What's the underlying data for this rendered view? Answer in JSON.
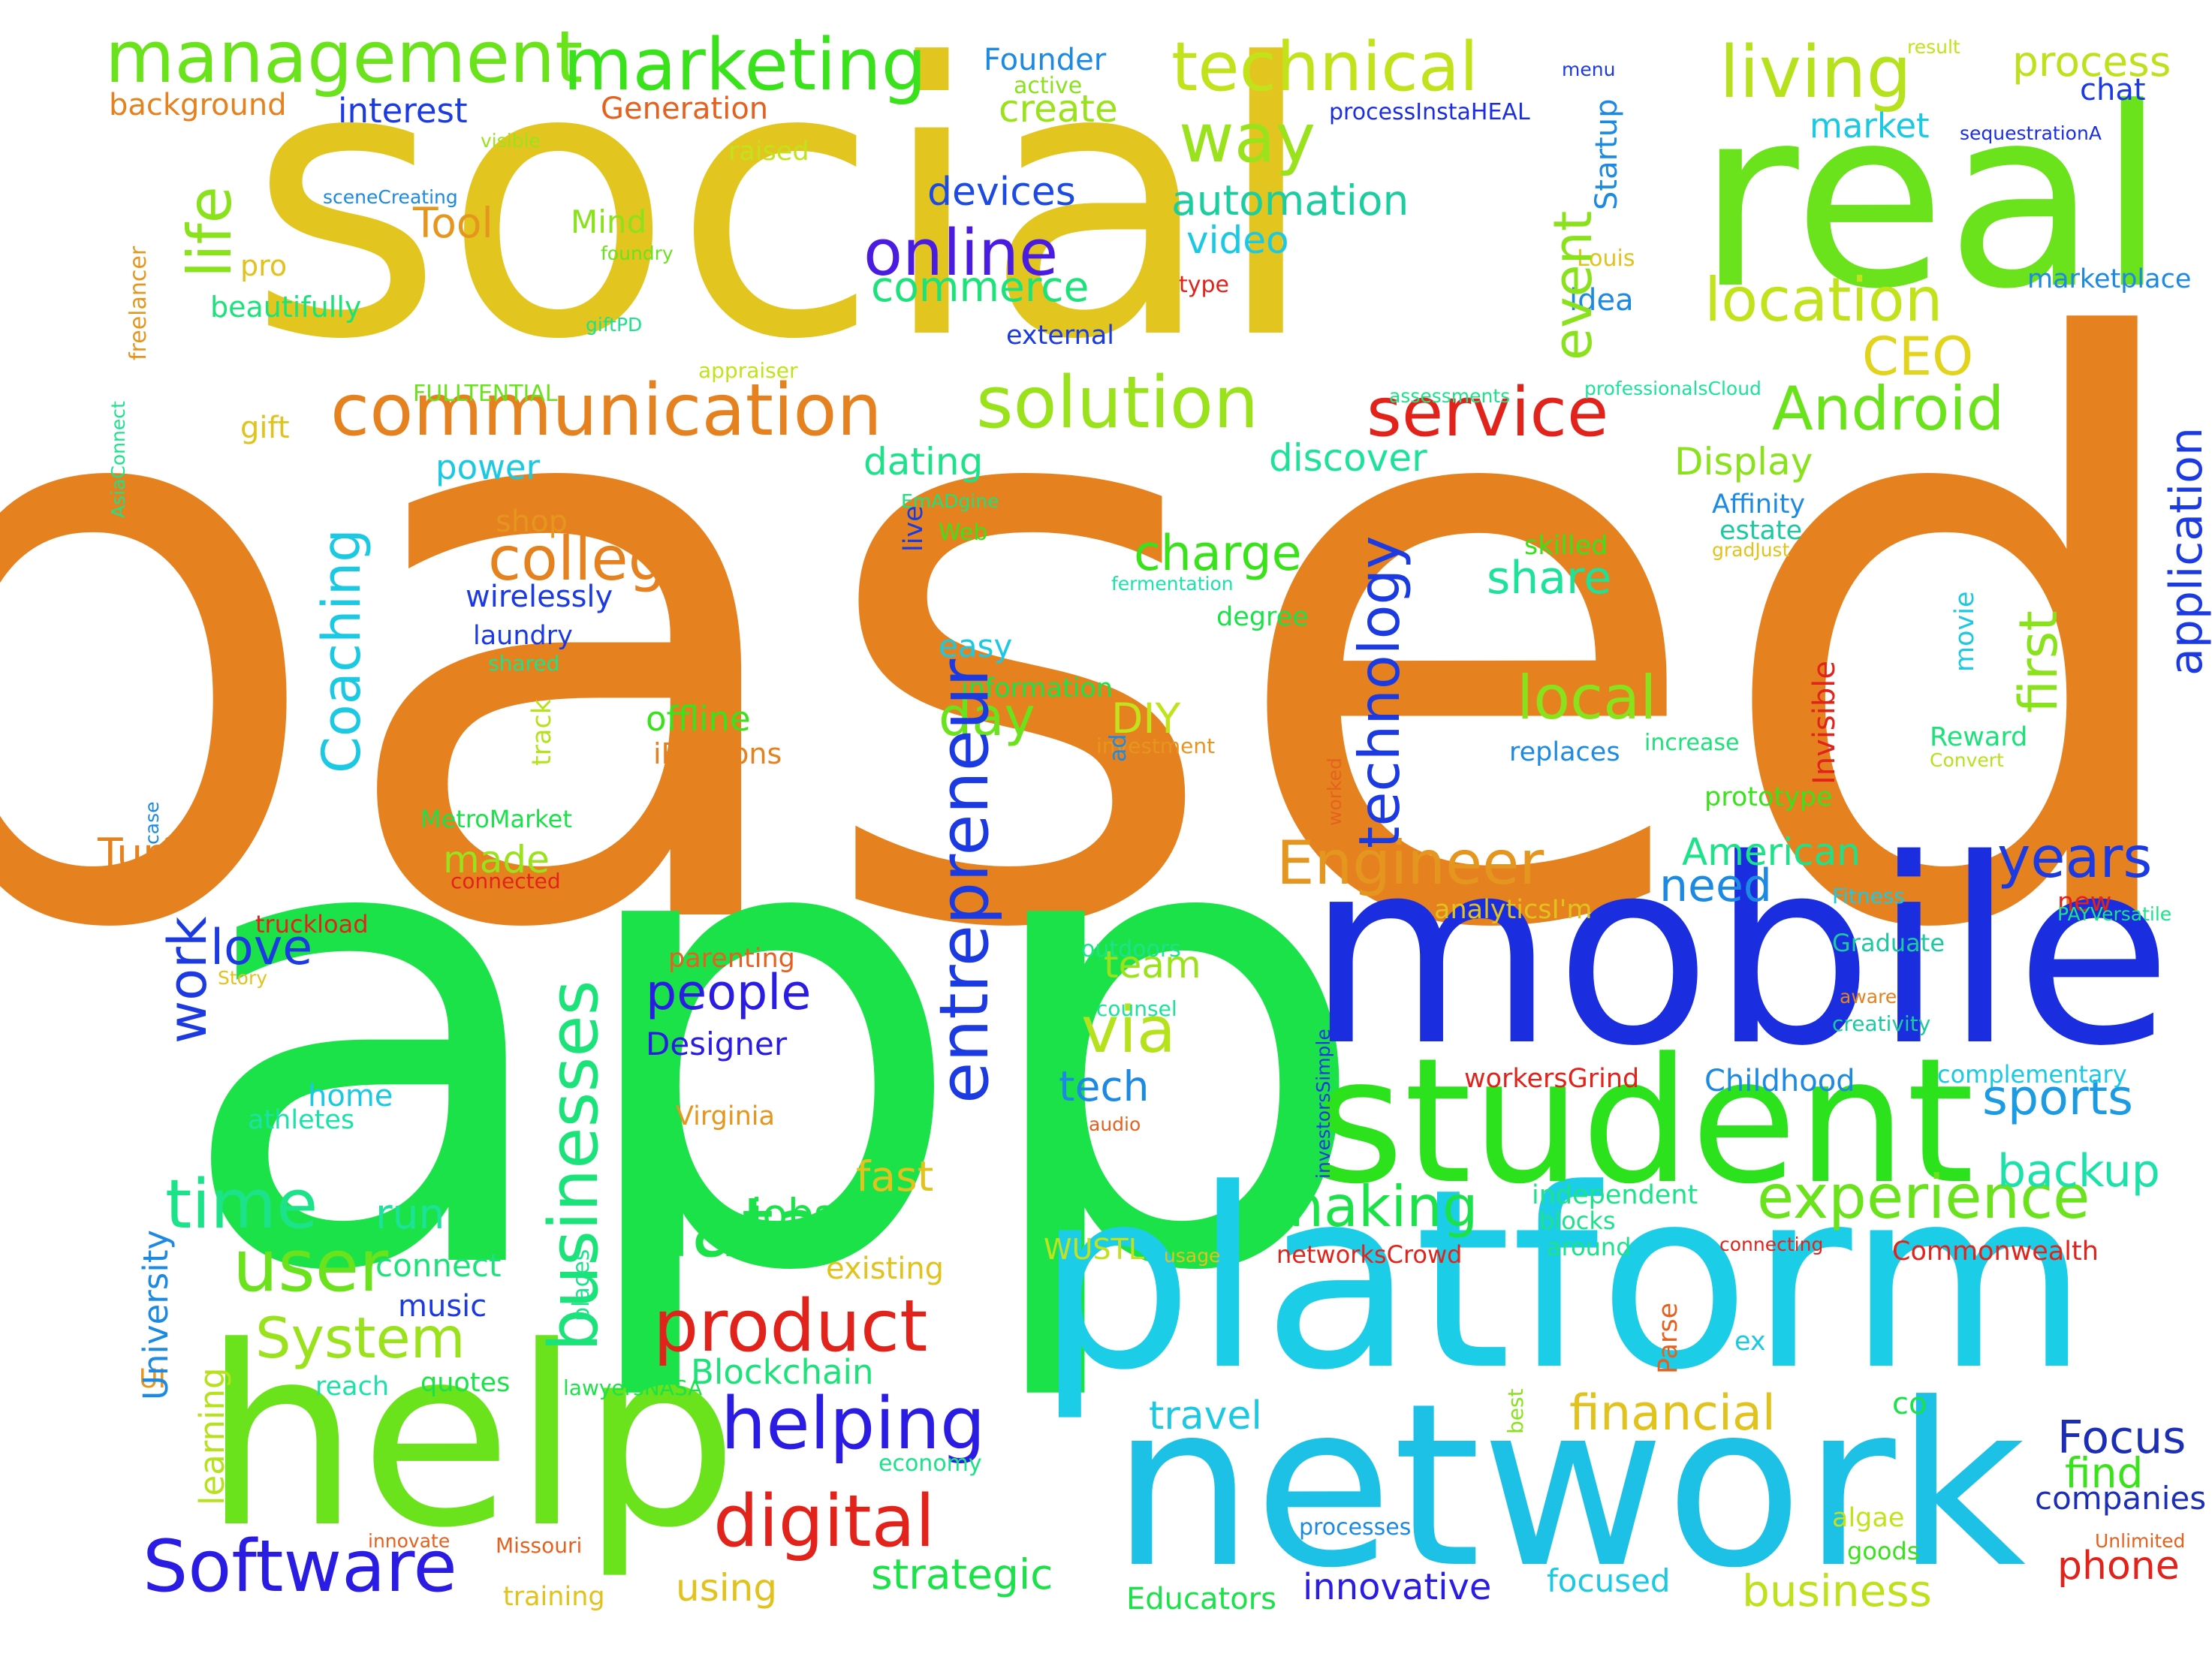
{
  "words": [
    {
      "text": "based",
      "color": "#E5821F"
    },
    {
      "text": "social",
      "color": "#E2C61F"
    },
    {
      "text": "app",
      "color": "#1CE24A"
    },
    {
      "text": "real",
      "color": "#6AE21C"
    },
    {
      "text": "mobile",
      "color": "#1A2EE0"
    },
    {
      "text": "platform",
      "color": "#1CCDE8"
    },
    {
      "text": "network",
      "color": "#1CC1E5"
    },
    {
      "text": "help",
      "color": "#6AE21C"
    },
    {
      "text": "student",
      "color": "#2BE21C"
    },
    {
      "text": "management",
      "color": "#6AE21C"
    },
    {
      "text": "marketing",
      "color": "#3AE21C"
    },
    {
      "text": "technical",
      "color": "#C2E21C"
    },
    {
      "text": "living",
      "color": "#B5E21C"
    },
    {
      "text": "process",
      "color": "#BDE21C"
    },
    {
      "text": "communication",
      "color": "#E5821F"
    },
    {
      "text": "solution",
      "color": "#9AE21C"
    },
    {
      "text": "service",
      "color": "#E2231C"
    },
    {
      "text": "Android",
      "color": "#6AE21C"
    },
    {
      "text": "location",
      "color": "#C2E21C"
    },
    {
      "text": "CEO",
      "color": "#E2D41C"
    },
    {
      "text": "online",
      "color": "#4A1CE2"
    },
    {
      "text": "commerce",
      "color": "#1CE27A"
    },
    {
      "text": "way",
      "color": "#9AE21C"
    },
    {
      "text": "automation",
      "color": "#1CCDA0"
    },
    {
      "text": "video",
      "color": "#1CC9E2"
    },
    {
      "text": "devices",
      "color": "#1C4AE2"
    },
    {
      "text": "college",
      "color": "#E5821F"
    },
    {
      "text": "Engineer",
      "color": "#E5961F"
    },
    {
      "text": "product",
      "color": "#E2231C"
    },
    {
      "text": "digital",
      "color": "#E2231C"
    },
    {
      "text": "Software",
      "color": "#2A1CE2"
    },
    {
      "text": "helping",
      "color": "#2A1CE2"
    },
    {
      "text": "data",
      "color": "#1CE24A"
    },
    {
      "text": "user",
      "color": "#6AE21C"
    },
    {
      "text": "time",
      "color": "#1CE28A"
    },
    {
      "text": "System",
      "color": "#9AE21C"
    },
    {
      "text": "experience",
      "color": "#6AE21C"
    },
    {
      "text": "making",
      "color": "#1CE24A"
    },
    {
      "text": "local",
      "color": "#8AE21C"
    },
    {
      "text": "share",
      "color": "#1CE29A"
    },
    {
      "text": "charge",
      "color": "#3AE21C"
    },
    {
      "text": "years",
      "color": "#1C3AE2"
    },
    {
      "text": "need",
      "color": "#1C8AE2"
    },
    {
      "text": "sports",
      "color": "#1C9AE2"
    },
    {
      "text": "backup",
      "color": "#1CE2AA"
    },
    {
      "text": "financial",
      "color": "#E2C21C"
    },
    {
      "text": "business",
      "color": "#BDE21C"
    },
    {
      "text": "Focus",
      "color": "#1C2EB5"
    },
    {
      "text": "find",
      "color": "#3AE21C"
    },
    {
      "text": "phone",
      "color": "#E2231C"
    },
    {
      "text": "companies",
      "color": "#1C2EB5"
    },
    {
      "text": "travel",
      "color": "#1CC9E2"
    },
    {
      "text": "innovative",
      "color": "#2A1CE2"
    },
    {
      "text": "strategic",
      "color": "#1CE24A"
    },
    {
      "text": "using",
      "color": "#E2C21C"
    },
    {
      "text": "Educators",
      "color": "#1CE24A"
    },
    {
      "text": "focused",
      "color": "#1CC9E2"
    },
    {
      "text": "Blockchain",
      "color": "#1CE27A"
    },
    {
      "text": "via",
      "color": "#B5E21C"
    },
    {
      "text": "tech",
      "color": "#1C8AE2"
    },
    {
      "text": "team",
      "color": "#9AE21C"
    },
    {
      "text": "people",
      "color": "#2A1CE2"
    },
    {
      "text": "Designer",
      "color": "#2A1CE2"
    },
    {
      "text": "love",
      "color": "#1C3AE2"
    },
    {
      "text": "made",
      "color": "#9AE21C"
    },
    {
      "text": "Turf",
      "color": "#E5821F"
    },
    {
      "text": "day",
      "color": "#6AE21C"
    },
    {
      "text": "DIY",
      "color": "#C2E21C"
    },
    {
      "text": "jobsite",
      "color": "#1CE24A"
    },
    {
      "text": "fast",
      "color": "#E2C21C"
    },
    {
      "text": "run",
      "color": "#1CE29A"
    },
    {
      "text": "connect",
      "color": "#1CE27A"
    },
    {
      "text": "music",
      "color": "#1C3AE2"
    },
    {
      "text": "quotes",
      "color": "#1CE24A"
    },
    {
      "text": "reach",
      "color": "#1CE2AA"
    },
    {
      "text": "Tool",
      "color": "#E5961F"
    },
    {
      "text": "Mind",
      "color": "#8AE21C"
    },
    {
      "text": "pro",
      "color": "#E2C21C"
    },
    {
      "text": "beautifully",
      "color": "#1CE27A"
    },
    {
      "text": "interest",
      "color": "#1C3AE2"
    },
    {
      "text": "Generation",
      "color": "#E5611F"
    },
    {
      "text": "background",
      "color": "#E5821F"
    },
    {
      "text": "Founder",
      "color": "#1C8AE2"
    },
    {
      "text": "active",
      "color": "#8AE21C"
    },
    {
      "text": "create",
      "color": "#9AE21C"
    },
    {
      "text": "raised",
      "color": "#C2E21C"
    },
    {
      "text": "market",
      "color": "#1CC9E2"
    },
    {
      "text": "chat",
      "color": "#1C3AE2"
    },
    {
      "text": "menu",
      "color": "#1C3AE2"
    },
    {
      "text": "result",
      "color": "#C2E21C"
    },
    {
      "text": "processInstaHEAL",
      "color": "#1C2EE2"
    },
    {
      "text": "sequestrationA",
      "color": "#1C2EE2"
    },
    {
      "text": "marketplace",
      "color": "#1C8AE2"
    },
    {
      "text": "Louis",
      "color": "#E2C21C"
    },
    {
      "text": "idea",
      "color": "#1C8AE2"
    },
    {
      "text": "type",
      "color": "#E2231C"
    },
    {
      "text": "external",
      "color": "#1C3AE2"
    },
    {
      "text": "foundry",
      "color": "#6AE21C"
    },
    {
      "text": "giftPD",
      "color": "#1CE28A"
    },
    {
      "text": "appraiser",
      "color": "#C2E21C"
    },
    {
      "text": "sceneCreating",
      "color": "#1C8AE2"
    },
    {
      "text": "visible",
      "color": "#9AE21C"
    },
    {
      "text": "FULLTENTIAL",
      "color": "#6AE21C"
    },
    {
      "text": "assessments",
      "color": "#1CE28A"
    },
    {
      "text": "professionalsCloud",
      "color": "#1CE29A"
    },
    {
      "text": "gift",
      "color": "#E2C21C"
    },
    {
      "text": "power",
      "color": "#1CC9E2"
    },
    {
      "text": "shop",
      "color": "#E5961F"
    },
    {
      "text": "dating",
      "color": "#1CE28A"
    },
    {
      "text": "discover",
      "color": "#1CE29A"
    },
    {
      "text": "Display",
      "color": "#8AE21C"
    },
    {
      "text": "Affinity",
      "color": "#1C8AE2"
    },
    {
      "text": "estate",
      "color": "#1CC9A0"
    },
    {
      "text": "gradJust",
      "color": "#E2C21C"
    },
    {
      "text": "EmADgine",
      "color": "#1CE27A"
    },
    {
      "text": "Web",
      "color": "#3AE21C"
    },
    {
      "text": "skilled",
      "color": "#3AE21C"
    },
    {
      "text": "fermentation",
      "color": "#1CE2AA"
    },
    {
      "text": "degree",
      "color": "#1CE24A"
    },
    {
      "text": "wirelessly",
      "color": "#1C3AE2"
    },
    {
      "text": "laundry",
      "color": "#1C3AE2"
    },
    {
      "text": "shared",
      "color": "#1CE28A"
    },
    {
      "text": "easy",
      "color": "#1CC9E2"
    },
    {
      "text": "information",
      "color": "#1CE24A"
    },
    {
      "text": "offline",
      "color": "#3AE21C"
    },
    {
      "text": "iBeacons",
      "color": "#E5821F"
    },
    {
      "text": "investment",
      "color": "#E5961F"
    },
    {
      "text": "replaces",
      "color": "#1C8AE2"
    },
    {
      "text": "increase",
      "color": "#1CE27A"
    },
    {
      "text": "Reward",
      "color": "#1CE27A"
    },
    {
      "text": "Convert",
      "color": "#B5E21C"
    },
    {
      "text": "prototype",
      "color": "#3AE21C"
    },
    {
      "text": "MetroMarket",
      "color": "#1CE24A"
    },
    {
      "text": "American",
      "color": "#1CE28A"
    },
    {
      "text": "connected",
      "color": "#E2231C"
    },
    {
      "text": "truckload",
      "color": "#E2231C"
    },
    {
      "text": "Story",
      "color": "#E2C21C"
    },
    {
      "text": "parenting",
      "color": "#E5611F"
    },
    {
      "text": "outdoors",
      "color": "#1CE28A"
    },
    {
      "text": "counsel",
      "color": "#1CE29A"
    },
    {
      "text": "analyticsI'm",
      "color": "#E2C21C"
    },
    {
      "text": "Fitness",
      "color": "#1CC9E2"
    },
    {
      "text": "new",
      "color": "#E2231C"
    },
    {
      "text": "PAYVersatile",
      "color": "#1CE28A"
    },
    {
      "text": "Graduate",
      "color": "#1CC9A0"
    },
    {
      "text": "aware",
      "color": "#E5821F"
    },
    {
      "text": "creativity",
      "color": "#1CC9A0"
    },
    {
      "text": "complementary",
      "color": "#1CC9E2"
    },
    {
      "text": "Childhood",
      "color": "#1C8AE2"
    },
    {
      "text": "workersGrind",
      "color": "#E2231C"
    },
    {
      "text": "home",
      "color": "#1CC9E2"
    },
    {
      "text": "athletes",
      "color": "#1CE2AA"
    },
    {
      "text": "Virginia",
      "color": "#E5961F"
    },
    {
      "text": "audio",
      "color": "#E5611F"
    },
    {
      "text": "independent",
      "color": "#1CE28A"
    },
    {
      "text": "blocks",
      "color": "#1CE28A"
    },
    {
      "text": "around",
      "color": "#1CE28A"
    },
    {
      "text": "connecting",
      "color": "#E2231C"
    },
    {
      "text": "Commonwealth",
      "color": "#E2231C"
    },
    {
      "text": "WUSTL",
      "color": "#C2E21C"
    },
    {
      "text": "usage",
      "color": "#E2C21C"
    },
    {
      "text": "existing",
      "color": "#E2C21C"
    },
    {
      "text": "networksCrowd",
      "color": "#E2231C"
    },
    {
      "text": "ex",
      "color": "#1CC9E2"
    },
    {
      "text": "co",
      "color": "#1CE24A"
    },
    {
      "text": "UI",
      "color": "#E5961F"
    },
    {
      "text": "lawyersNASA",
      "color": "#1CE24A"
    },
    {
      "text": "economy",
      "color": "#1CE28A"
    },
    {
      "text": "processes",
      "color": "#1C8AE2"
    },
    {
      "text": "goods",
      "color": "#3AE21C"
    },
    {
      "text": "algae",
      "color": "#C2E21C"
    },
    {
      "text": "Unlimited",
      "color": "#E5611F"
    },
    {
      "text": "innovate",
      "color": "#E5611F"
    },
    {
      "text": "Missouri",
      "color": "#E5611F"
    },
    {
      "text": "training",
      "color": "#E2C21C"
    },
    {
      "text": "life",
      "color": "#8AE21C"
    },
    {
      "text": "Coaching",
      "color": "#1CC9E2"
    },
    {
      "text": "businesses",
      "color": "#1CE27A"
    },
    {
      "text": "work",
      "color": "#1C3AE2"
    },
    {
      "text": "entrepreneur",
      "color": "#1C3AE2"
    },
    {
      "text": "technology",
      "color": "#1C3AE2"
    },
    {
      "text": "event",
      "color": "#8AE21C"
    },
    {
      "text": "first",
      "color": "#8AE21C"
    },
    {
      "text": "application",
      "color": "#1C3AE2"
    },
    {
      "text": "Startup",
      "color": "#1C8AE2"
    },
    {
      "text": "University",
      "color": "#1C8AE2"
    },
    {
      "text": "learning",
      "color": "#B5E21C"
    },
    {
      "text": "freelancer",
      "color": "#E5961F"
    },
    {
      "text": "AsiaConnect",
      "color": "#1CE28A"
    },
    {
      "text": "case",
      "color": "#1C8AE2"
    },
    {
      "text": "track",
      "color": "#B5E21C"
    },
    {
      "text": "live",
      "color": "#1C3AE2"
    },
    {
      "text": "ad",
      "color": "#1C8AE2"
    },
    {
      "text": "worked",
      "color": "#E5611F"
    },
    {
      "text": "Invisible",
      "color": "#E2231C"
    },
    {
      "text": "movie",
      "color": "#1CC9E2"
    },
    {
      "text": "investorsSimple",
      "color": "#1C3AE2"
    },
    {
      "text": "places",
      "color": "#1CE28A"
    },
    {
      "text": "Parse",
      "color": "#E5611F"
    },
    {
      "text": "best",
      "color": "#8AE21C"
    }
  ]
}
